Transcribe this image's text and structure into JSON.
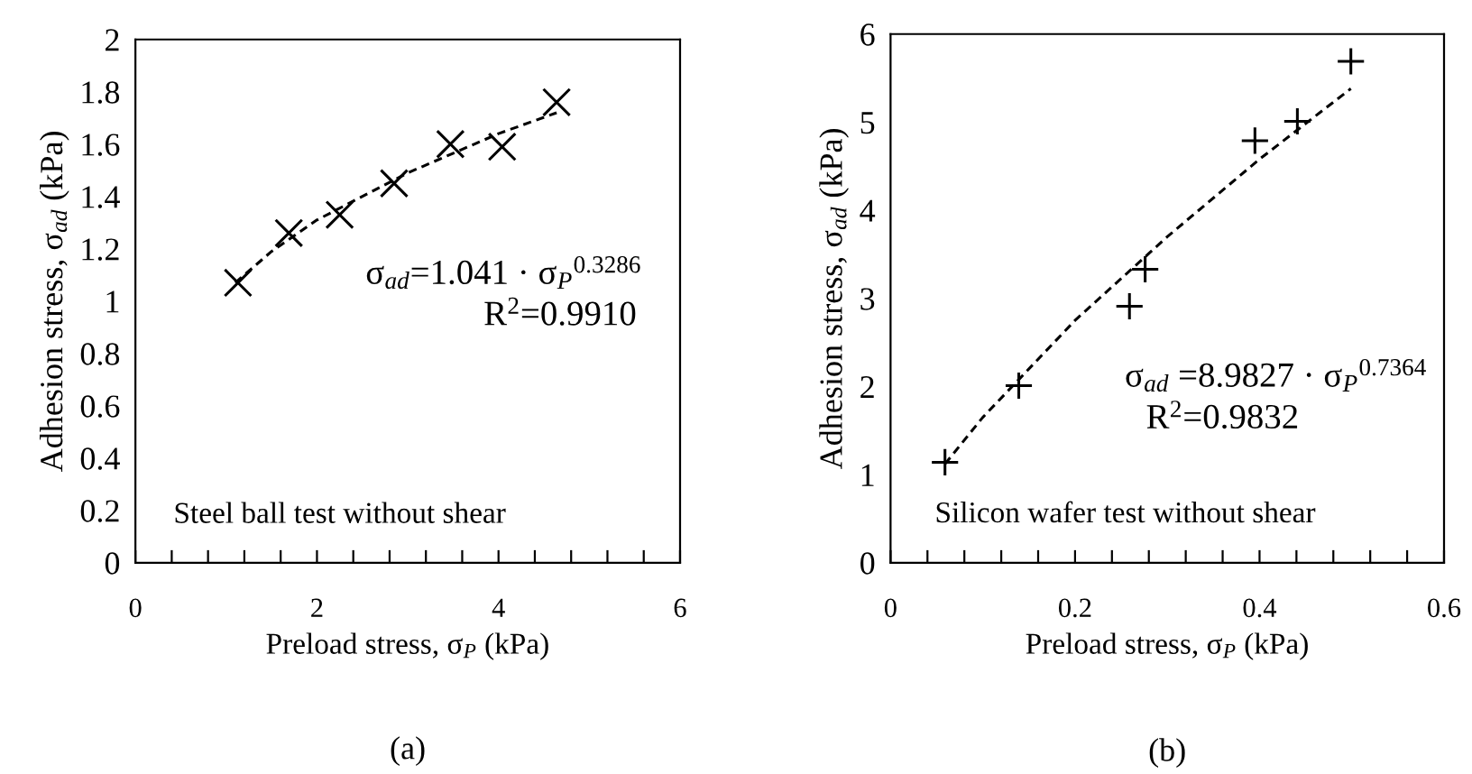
{
  "chart_data": [
    {
      "type": "scatter",
      "xlabel": "Preload stress, σ$_{P}$ (kPa)",
      "ylabel": "Adhesion stress, σ$_{ad}$ (kPa)",
      "annotations": [
        "σ$_{ad}$=1.041 · σ$_{P}$$^{0.3286}$",
        "R$^{2}$=0.9910",
        "Steel ball test without shear",
        "(a)"
      ],
      "xlim": [
        0,
        6
      ],
      "ylim": [
        0,
        2
      ],
      "xticks": [
        0,
        {
          "value": 0.4,
          "label": null
        },
        {
          "value": 0.8,
          "label": null
        },
        {
          "value": 1.2,
          "label": null
        },
        {
          "value": 1.6,
          "label": null
        },
        2,
        {
          "value": 2.4,
          "label": null
        },
        {
          "value": 2.8,
          "label": null
        },
        {
          "value": 3.2,
          "label": null
        },
        {
          "value": 3.6,
          "label": null
        },
        4,
        {
          "value": 4.4,
          "label": null
        },
        {
          "value": 4.8,
          "label": null
        },
        {
          "value": 5.2,
          "label": null
        },
        {
          "value": 5.6,
          "label": null
        },
        6
      ],
      "yticks": [
        0,
        0.2,
        0.4,
        0.6,
        0.8,
        1,
        1.2,
        1.4,
        1.6,
        1.8,
        2
      ],
      "grid": false,
      "legend": false,
      "series": [
        {
          "marker": "cross",
          "color": "#000000",
          "x": [
            1.13,
            1.69,
            2.25,
            2.85,
            3.47,
            4.04,
            4.64
          ],
          "values": [
            1.07,
            1.26,
            1.33,
            1.45,
            1.6,
            1.59,
            1.76
          ]
        },
        {
          "type": "line",
          "line_style": "dashed",
          "marker": "none",
          "color": "#000000",
          "x": [
            1.1,
            1.5,
            2,
            3,
            4,
            4.64
          ],
          "values": [
            1.07,
            1.19,
            1.31,
            1.49,
            1.64,
            1.72
          ]
        }
      ]
    },
    {
      "type": "scatter",
      "xlabel": "Preload stress, σ$_{P}$ (kPa)",
      "ylabel": "Adhesion stress, σ$_{ad}$ (kPa)",
      "annotations": [
        "σ$_{ad}$ =8.9827 · σ$_{P}$$^{0.7364}$",
        "R$^{2}$=0.9832",
        "Silicon wafer test without shear",
        "(b)"
      ],
      "xlim": [
        0,
        0.6
      ],
      "ylim": [
        0,
        6
      ],
      "xticks": [
        0,
        {
          "value": 0.04,
          "label": null
        },
        {
          "value": 0.08,
          "label": null
        },
        {
          "value": 0.12,
          "label": null
        },
        {
          "value": 0.16,
          "label": null
        },
        {
          "value": 0.2,
          "label": "0.2"
        },
        {
          "value": 0.24,
          "label": null
        },
        {
          "value": 0.28,
          "label": null
        },
        {
          "value": 0.32,
          "label": null
        },
        {
          "value": 0.36,
          "label": null
        },
        {
          "value": 0.4,
          "label": "0.4"
        },
        {
          "value": 0.44,
          "label": null
        },
        {
          "value": 0.48,
          "label": null
        },
        {
          "value": 0.52,
          "label": null
        },
        {
          "value": 0.56,
          "label": null
        },
        {
          "value": 0.6,
          "label": "0.6"
        }
      ],
      "yticks": [
        0,
        1,
        2,
        3,
        4,
        5,
        6
      ],
      "grid": false,
      "legend": false,
      "series": [
        {
          "marker": "plus",
          "color": "#000000",
          "x": [
            0.059,
            0.139,
            0.259,
            0.276,
            0.395,
            0.441,
            0.499
          ],
          "values": [
            1.14,
            2.01,
            2.91,
            3.33,
            4.79,
            5.01,
            5.69
          ]
        },
        {
          "type": "line",
          "line_style": "dashed",
          "marker": "none",
          "color": "#000000",
          "x": [
            0.059,
            0.1,
            0.2,
            0.3,
            0.4,
            0.499
          ],
          "values": [
            1.12,
            1.65,
            2.75,
            3.7,
            4.58,
            5.38
          ]
        }
      ]
    }
  ]
}
